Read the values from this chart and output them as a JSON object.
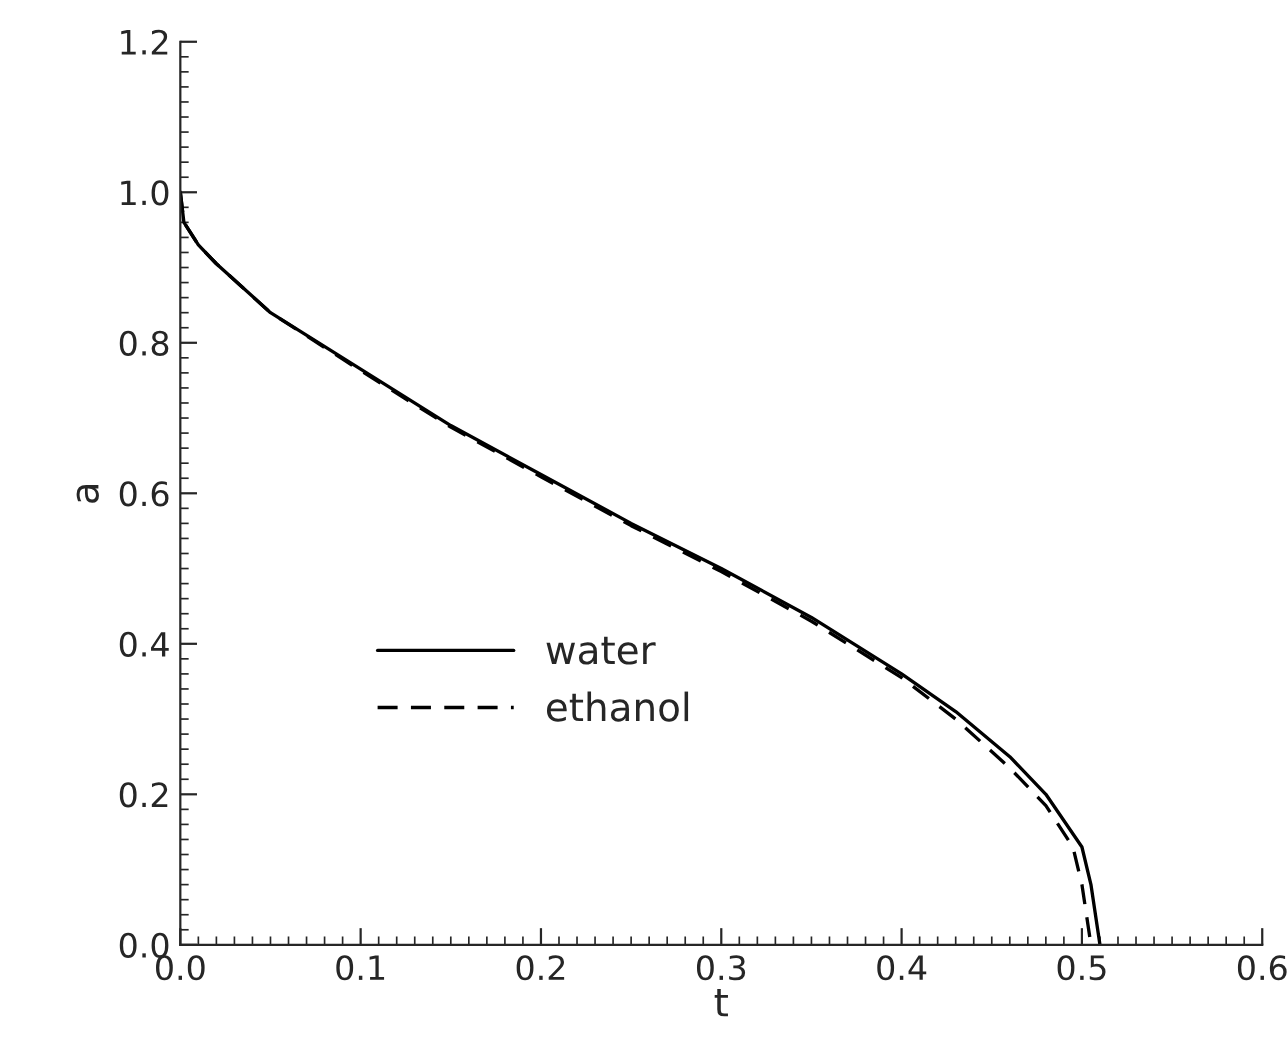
{
  "chart_data": {
    "type": "line",
    "xlabel": "t",
    "ylabel": "a",
    "xlim": [
      0,
      0.6
    ],
    "ylim": [
      0,
      1.2
    ],
    "xticks": [
      {
        "value": 0,
        "label": "0.0"
      },
      0.1,
      0.2,
      0.3,
      0.4,
      0.5,
      0.6
    ],
    "yticks": [
      {
        "value": 0,
        "label": "0.0"
      },
      0.2,
      0.4,
      0.6,
      0.8,
      {
        "value": 1.0,
        "label": "1.0"
      },
      1.2
    ],
    "grid": false,
    "legend": "left",
    "marker": "none",
    "series": [
      {
        "name": "water",
        "color": "#000000",
        "line_style": "solid",
        "x": [
          0,
          0.002,
          0.01,
          0.02,
          0.05,
          0.1,
          0.15,
          0.2,
          0.25,
          0.3,
          0.35,
          0.4,
          0.43,
          0.46,
          0.48,
          0.5,
          0.505,
          0.51
        ],
        "values": [
          1.0,
          0.96,
          0.93,
          0.905,
          0.84,
          0.765,
          0.69,
          0.625,
          0.56,
          0.5,
          0.435,
          0.36,
          0.31,
          0.25,
          0.2,
          0.13,
          0.08,
          0.0
        ]
      },
      {
        "name": "ethanol",
        "color": "#000000",
        "line_style": "dashed",
        "x": [
          0,
          0.002,
          0.01,
          0.02,
          0.05,
          0.1,
          0.15,
          0.2,
          0.25,
          0.3,
          0.35,
          0.4,
          0.43,
          0.46,
          0.48,
          0.495,
          0.5,
          0.505
        ],
        "values": [
          1.0,
          0.96,
          0.93,
          0.905,
          0.84,
          0.763,
          0.688,
          0.622,
          0.557,
          0.496,
          0.43,
          0.355,
          0.3,
          0.235,
          0.185,
          0.13,
          0.08,
          0.0
        ]
      }
    ]
  }
}
